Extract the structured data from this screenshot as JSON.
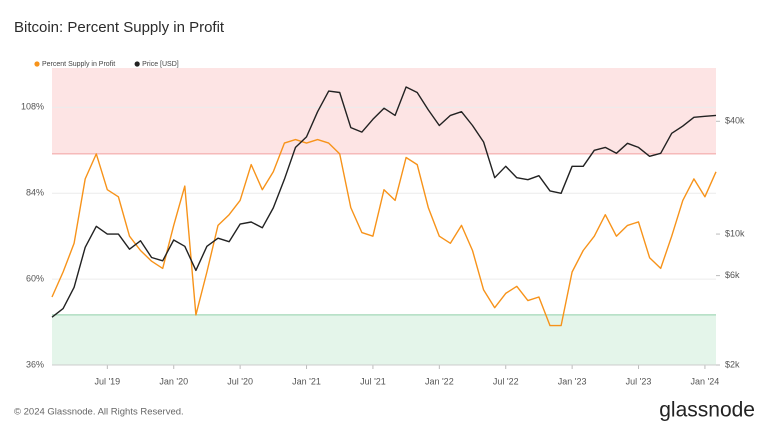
{
  "chart_data": {
    "type": "line",
    "title": "Bitcoin: Percent Supply in Profit",
    "footer": "© 2024 Glassnode. All Rights Reserved.",
    "brand": "glassnode",
    "x": [
      "2019-02",
      "2019-03",
      "2019-04",
      "2019-05",
      "2019-06",
      "2019-07",
      "2019-08",
      "2019-09",
      "2019-10",
      "2019-11",
      "2019-12",
      "2020-01",
      "2020-02",
      "2020-03",
      "2020-04",
      "2020-05",
      "2020-06",
      "2020-07",
      "2020-08",
      "2020-09",
      "2020-10",
      "2020-11",
      "2020-12",
      "2021-01",
      "2021-02",
      "2021-03",
      "2021-04",
      "2021-05",
      "2021-06",
      "2021-07",
      "2021-08",
      "2021-09",
      "2021-10",
      "2021-11",
      "2021-12",
      "2022-01",
      "2022-02",
      "2022-03",
      "2022-04",
      "2022-05",
      "2022-06",
      "2022-07",
      "2022-08",
      "2022-09",
      "2022-10",
      "2022-11",
      "2022-12",
      "2023-01",
      "2023-02",
      "2023-03",
      "2023-04",
      "2023-05",
      "2023-06",
      "2023-07",
      "2023-08",
      "2023-09",
      "2023-10",
      "2023-11",
      "2023-12",
      "2024-01",
      "2024-02"
    ],
    "xlim": [
      "2019-02",
      "2024-02"
    ],
    "xticks": [
      {
        "value": "2019-07",
        "label": "Jul '19"
      },
      {
        "value": "2020-01",
        "label": "Jan '20"
      },
      {
        "value": "2020-07",
        "label": "Jul '20"
      },
      {
        "value": "2021-01",
        "label": "Jan '21"
      },
      {
        "value": "2021-07",
        "label": "Jul '21"
      },
      {
        "value": "2022-01",
        "label": "Jan '22"
      },
      {
        "value": "2022-07",
        "label": "Jul '22"
      },
      {
        "value": "2023-01",
        "label": "Jan '23"
      },
      {
        "value": "2023-07",
        "label": "Jul '23"
      },
      {
        "value": "2024-01",
        "label": "Jan '24"
      }
    ],
    "ylim": [
      36,
      119
    ],
    "yticks": [
      {
        "value": 36,
        "label": "36%"
      },
      {
        "value": 60,
        "label": "60%"
      },
      {
        "value": 84,
        "label": "84%"
      },
      {
        "value": 108,
        "label": "108%"
      }
    ],
    "y2lim": [
      2000,
      77000
    ],
    "y2scale": "log",
    "y2ticks": [
      {
        "value": 2000,
        "label": "$2k"
      },
      {
        "value": 6000,
        "label": "$6k"
      },
      {
        "value": 10000,
        "label": "$10k"
      },
      {
        "value": 40000,
        "label": "$40k"
      }
    ],
    "grid": true,
    "zones": [
      {
        "above": 95,
        "color": "#fde4e4",
        "edge": "#f3a0a0"
      },
      {
        "below": 50,
        "color": "#e4f5ea",
        "edge": "#8fcfa8"
      }
    ],
    "series": [
      {
        "name": "Percent Supply in Profit",
        "color": "#f7931a",
        "values": [
          55,
          62,
          70,
          88,
          95,
          85,
          83,
          72,
          68,
          65,
          63,
          75,
          86,
          50,
          62,
          75,
          78,
          82,
          92,
          85,
          90,
          98,
          99,
          98,
          99,
          98,
          95,
          80,
          73,
          72,
          85,
          82,
          94,
          92,
          80,
          72,
          70,
          75,
          68,
          57,
          52,
          56,
          58,
          54,
          55,
          47,
          47,
          62,
          68,
          72,
          78,
          72,
          75,
          76,
          66,
          63,
          72,
          82,
          88,
          83,
          90
        ]
      },
      {
        "name": "Price [USD]",
        "color": "#222222",
        "axis": "y2",
        "values": [
          3600,
          4000,
          5200,
          8500,
          11000,
          10000,
          10000,
          8300,
          9200,
          7500,
          7200,
          9300,
          8600,
          6400,
          8600,
          9500,
          9100,
          11300,
          11600,
          10800,
          13800,
          19600,
          29000,
          33000,
          45000,
          58000,
          57000,
          37000,
          35000,
          41000,
          47000,
          43000,
          61000,
          57000,
          46000,
          38000,
          43000,
          45000,
          38000,
          31000,
          20000,
          23000,
          20000,
          19500,
          20500,
          17000,
          16500,
          23000,
          23000,
          28000,
          29000,
          27000,
          30500,
          29000,
          26000,
          27000,
          34500,
          37700,
          42000,
          42500,
          43000
        ]
      }
    ]
  }
}
